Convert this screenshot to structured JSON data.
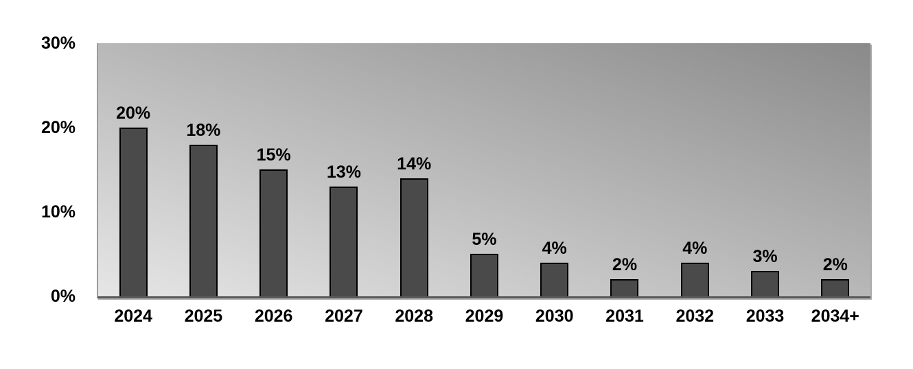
{
  "chart_data": {
    "type": "bar",
    "title": "",
    "xlabel": "",
    "ylabel": "",
    "categories": [
      "2024",
      "2025",
      "2026",
      "2027",
      "2028",
      "2029",
      "2030",
      "2031",
      "2032",
      "2033",
      "2034+"
    ],
    "values": [
      20,
      18,
      15,
      13,
      14,
      5,
      4,
      2,
      4,
      3,
      2
    ],
    "value_labels": [
      "20%",
      "18%",
      "15%",
      "13%",
      "14%",
      "5%",
      "4%",
      "2%",
      "4%",
      "3%",
      "2%"
    ],
    "ylim": [
      0,
      30
    ],
    "yticks": [
      {
        "value": 30,
        "label": "30%"
      },
      {
        "value": 20,
        "label": "20%"
      },
      {
        "value": 10,
        "label": "10%"
      },
      {
        "value": 0,
        "label": "0%"
      }
    ],
    "grid": false,
    "legend": null,
    "colors": {
      "bar_fill": "#4a4a4a",
      "bar_border": "#000000",
      "plot_bg_gradient_light": "#e6e6e6",
      "plot_bg_gradient_dark": "#8a8a8a",
      "axis_text": "#000000"
    }
  }
}
